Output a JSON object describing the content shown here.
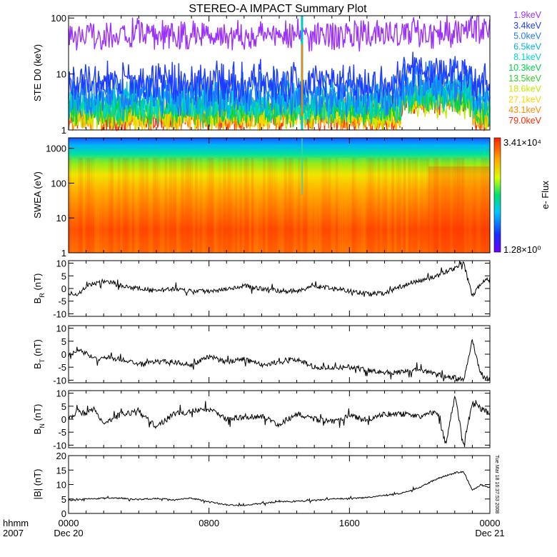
{
  "title": "STEREO-A IMPACT Summary Plot",
  "stamp": "Tue Mar 18 16:37:53 2008",
  "time_axis": {
    "row1_label": "hhmm",
    "row2_label": "2007",
    "ticks": [
      {
        "hours": 0,
        "label": "0000",
        "date": "Dec 20"
      },
      {
        "hours": 8,
        "label": "0800",
        "date": ""
      },
      {
        "hours": 16,
        "label": "1600",
        "date": ""
      },
      {
        "hours": 24,
        "label": "0000",
        "date": "Dec 21"
      }
    ]
  },
  "colors": {
    "trace": "#000000",
    "energy_channels": [
      "#9b30ff",
      "#1e3cff",
      "#1e78ff",
      "#00b4e6",
      "#00d8c8",
      "#00d050",
      "#32cd32",
      "#c8e800",
      "#ffd400",
      "#ff8c00",
      "#ff2a00"
    ]
  },
  "chart_data": [
    {
      "type": "line",
      "panel": "ste",
      "ylabel": "STE D0 (keV)",
      "yscale": "log",
      "ylim": [
        1,
        110
      ],
      "xlim_hours": [
        0,
        24
      ],
      "yticks": [
        {
          "v": 1,
          "label": "1"
        },
        {
          "v": 10,
          "label": "10"
        },
        {
          "v": 100,
          "label": "100"
        }
      ],
      "series": [
        {
          "name": "1.9keV",
          "level": 50,
          "spread": 0.17
        },
        {
          "name": "3.4keV",
          "level": 7.0,
          "spread": 0.22
        },
        {
          "name": "5.0keV",
          "level": 4.4,
          "spread": 0.22
        },
        {
          "name": "6.5keV",
          "level": 3.5,
          "spread": 0.2
        },
        {
          "name": "8.1keV",
          "level": 3.0,
          "spread": 0.2
        },
        {
          "name": "10.3keV",
          "level": 2.6,
          "spread": 0.18
        },
        {
          "name": "13.5keV",
          "level": 2.3,
          "spread": 0.18
        },
        {
          "name": "18.6keV",
          "level": 2.1,
          "spread": 0.18
        },
        {
          "name": "27.1keV",
          "level": 1.9,
          "spread": 0.18
        },
        {
          "name": "43.1keV",
          "level": 1.8,
          "spread": 0.18
        },
        {
          "name": "79.0keV",
          "level": 1.7,
          "spread": 0.18
        }
      ],
      "spike_hours": 13.3
    },
    {
      "type": "heatmap",
      "panel": "swea",
      "ylabel": "SWEA (eV)",
      "yscale": "log",
      "ylim": [
        1,
        2000
      ],
      "xlim_hours": [
        0,
        24
      ],
      "yticks": [
        {
          "v": 1,
          "label": "1"
        },
        {
          "v": 10,
          "label": "10"
        },
        {
          "v": 100,
          "label": "100"
        },
        {
          "v": 1000,
          "label": "1000"
        }
      ],
      "colorbar": {
        "label": "e- Flux",
        "max_label": "3.41×10⁴",
        "min_label": "1.28×10⁰",
        "max": 34100,
        "min": 1.28,
        "scale": "log"
      }
    },
    {
      "type": "line",
      "panel": "br",
      "ylabel_main": "B",
      "ylabel_sub": "R",
      "ylabel_unit": " (nT)",
      "ylim": [
        -11,
        11
      ],
      "xlim_hours": [
        0,
        24
      ],
      "yticks": [
        {
          "v": 10,
          "label": "10"
        },
        {
          "v": 5,
          "label": "5"
        },
        {
          "v": 0,
          "label": "0"
        },
        {
          "v": -5,
          "label": "-5"
        },
        {
          "v": -10,
          "label": "-10"
        }
      ],
      "x": [
        0,
        0.5,
        1,
        1.5,
        2,
        3,
        4,
        5,
        6,
        7,
        8,
        9,
        10,
        11,
        12,
        13,
        14,
        15,
        16,
        17,
        18,
        19,
        20,
        21,
        22,
        22.5,
        23,
        23.5,
        24
      ],
      "values": [
        -2,
        -3,
        1,
        2,
        3,
        1,
        0,
        -1,
        0,
        -1,
        -1,
        0,
        1,
        0,
        -1,
        -1,
        1,
        0,
        -1,
        -2,
        -2,
        1,
        3,
        5,
        8,
        10,
        -3,
        2,
        4
      ]
    },
    {
      "type": "line",
      "panel": "bt",
      "ylabel_main": "B",
      "ylabel_sub": "T",
      "ylabel_unit": " (nT)",
      "ylim": [
        -11,
        11
      ],
      "xlim_hours": [
        0,
        24
      ],
      "yticks": [
        {
          "v": 10,
          "label": "10"
        },
        {
          "v": 5,
          "label": "5"
        },
        {
          "v": 0,
          "label": "0"
        },
        {
          "v": -5,
          "label": "-5"
        },
        {
          "v": -10,
          "label": "-10"
        }
      ],
      "x": [
        0,
        0.5,
        1,
        1.5,
        2,
        3,
        4,
        5,
        6,
        7,
        8,
        9,
        10,
        11,
        12,
        13,
        14,
        15,
        16,
        17,
        18,
        19,
        20,
        21,
        22,
        22.5,
        23,
        23.5,
        24
      ],
      "values": [
        -1,
        2,
        0,
        -2,
        -1,
        -2,
        -4,
        -3,
        -3,
        -4,
        -1,
        -3,
        -2,
        -4,
        -3,
        -2,
        -5,
        -5,
        -5,
        -6,
        -7,
        -7,
        -6,
        -8,
        -9,
        -10,
        5,
        -8,
        -10
      ]
    },
    {
      "type": "line",
      "panel": "bn",
      "ylabel_main": "B",
      "ylabel_sub": "N",
      "ylabel_unit": " (nT)",
      "ylim": [
        -11,
        11
      ],
      "xlim_hours": [
        0,
        24
      ],
      "yticks": [
        {
          "v": 10,
          "label": "10"
        },
        {
          "v": 5,
          "label": "5"
        },
        {
          "v": 0,
          "label": "0"
        },
        {
          "v": -5,
          "label": "-5"
        },
        {
          "v": -10,
          "label": "-10"
        }
      ],
      "x": [
        0,
        0.5,
        1,
        1.5,
        2,
        3,
        4,
        5,
        6,
        7,
        8,
        9,
        10,
        11,
        12,
        13,
        14,
        15,
        16,
        17,
        18,
        19,
        20,
        21,
        21.5,
        22,
        22.5,
        23,
        24
      ],
      "values": [
        0,
        3,
        2,
        4,
        -2,
        2,
        3,
        -3,
        2,
        3,
        4,
        0,
        1,
        1,
        -2,
        2,
        0,
        -1,
        1,
        0,
        2,
        2,
        1,
        3,
        -10,
        9,
        -10,
        6,
        2
      ]
    },
    {
      "type": "line",
      "panel": "bmag",
      "ylabel_main": "|B| (nT)",
      "ylabel_sub": "",
      "ylabel_unit": "",
      "ylim": [
        0,
        20
      ],
      "xlim_hours": [
        0,
        24
      ],
      "yticks": [
        {
          "v": 20,
          "label": "20"
        },
        {
          "v": 15,
          "label": "15"
        },
        {
          "v": 10,
          "label": "10"
        },
        {
          "v": 5,
          "label": "5"
        },
        {
          "v": 0,
          "label": "0"
        }
      ],
      "x": [
        0,
        1,
        2,
        3,
        4,
        5,
        6,
        7,
        8,
        9,
        10,
        11,
        12,
        13,
        14,
        15,
        16,
        17,
        18,
        19,
        20,
        21,
        22,
        22.5,
        23,
        23.5,
        24
      ],
      "values": [
        4.5,
        5,
        5.2,
        5.3,
        4.8,
        5.2,
        4.7,
        5.3,
        4,
        3,
        2.8,
        3.5,
        4,
        4.2,
        4.5,
        5,
        5.2,
        5.5,
        6.2,
        7,
        9,
        12,
        14,
        14.5,
        8,
        10,
        9
      ]
    }
  ]
}
